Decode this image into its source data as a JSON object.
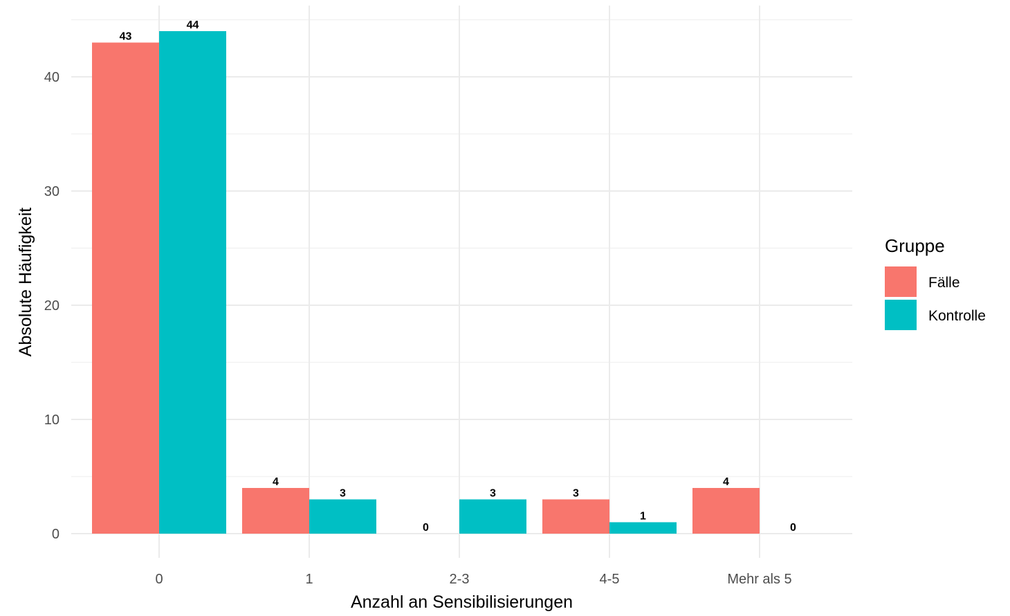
{
  "chart_data": {
    "type": "bar",
    "categories": [
      "0",
      "1",
      "2-3",
      "4-5",
      "Mehr als 5"
    ],
    "series": [
      {
        "name": "Fälle",
        "values": [
          43,
          4,
          0,
          3,
          4
        ],
        "color": "#F8766D"
      },
      {
        "name": "Kontrolle",
        "values": [
          44,
          3,
          3,
          1,
          0
        ],
        "color": "#00BFC4"
      }
    ],
    "xlabel": "Anzahl an Sensibilisierungen",
    "ylabel": "Absolute Häufigkeit",
    "ylim": [
      0,
      46
    ],
    "yticks": [
      0,
      10,
      20,
      30,
      40
    ],
    "grid": true,
    "legend": {
      "title": "Gruppe",
      "position": "right"
    },
    "data_labels": true
  }
}
